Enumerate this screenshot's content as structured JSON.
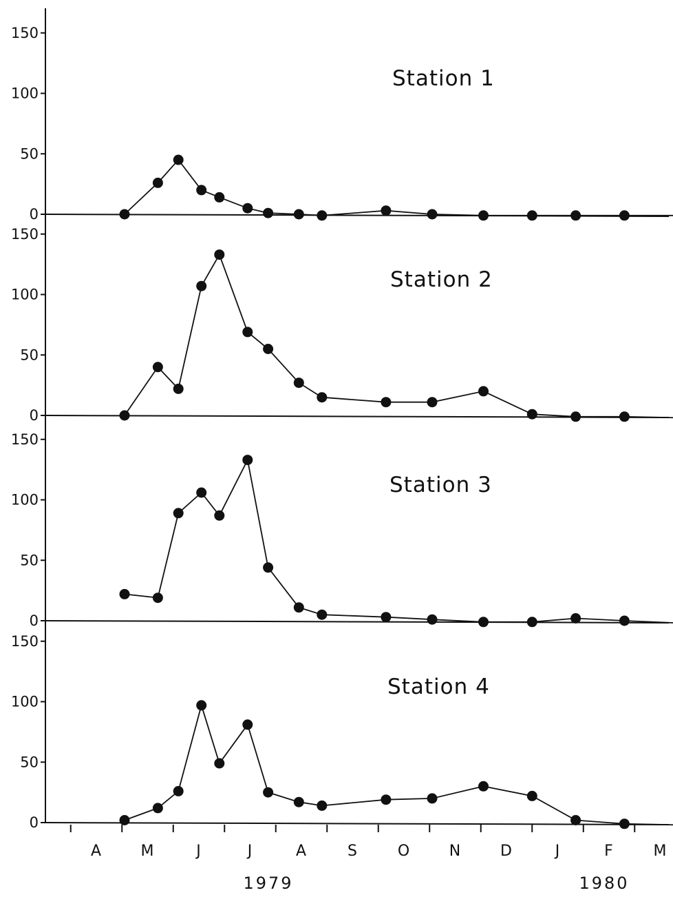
{
  "chart_data": {
    "type": "line",
    "layout": "four vertically stacked panels sharing a time axis",
    "y_ticks": [
      0,
      50,
      100,
      150
    ],
    "ylim": [
      0,
      150
    ],
    "month_labels": [
      "A",
      "M",
      "J",
      "J",
      "A",
      "S",
      "O",
      "N",
      "D",
      "J",
      "F",
      "M"
    ],
    "year_labels": [
      "1979",
      "1980"
    ],
    "x_sample_positions": [
      0.55,
      1.2,
      1.6,
      2.05,
      2.4,
      2.95,
      3.35,
      3.95,
      4.4,
      5.65,
      6.55,
      7.55,
      8.5,
      9.35,
      10.3,
      11.4
    ],
    "panels": [
      {
        "label": "Station 1",
        "values": [
          0,
          26,
          45,
          20,
          14,
          5,
          1,
          0,
          -1,
          3,
          0,
          -1,
          -1,
          -1,
          -1,
          -1
        ]
      },
      {
        "label": "Station 2",
        "values": [
          0,
          40,
          22,
          107,
          133,
          69,
          55,
          27,
          15,
          11,
          11,
          20,
          1,
          -1,
          -1,
          -2
        ]
      },
      {
        "label": "Station 3",
        "values": [
          22,
          19,
          89,
          106,
          87,
          133,
          44,
          11,
          5,
          3,
          1,
          -1,
          -1,
          2,
          0,
          -2
        ]
      },
      {
        "label": "Station 4",
        "values": [
          2,
          12,
          26,
          97,
          49,
          81,
          25,
          17,
          14,
          19,
          20,
          30,
          22,
          2,
          -1,
          -2
        ]
      }
    ]
  }
}
